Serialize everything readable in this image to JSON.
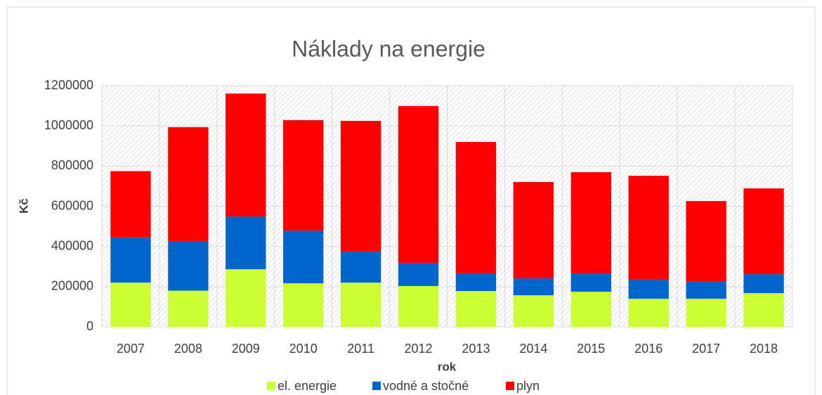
{
  "chart_data": {
    "type": "stacked_bar",
    "title": "Náklady na energie",
    "x_label": "rok",
    "y_label": "Kč",
    "categories": [
      "2007",
      "2008",
      "2009",
      "2010",
      "2011",
      "2012",
      "2013",
      "2014",
      "2015",
      "2016",
      "2017",
      "2018"
    ],
    "series": [
      {
        "name": "el. energie",
        "color": "#ccff33",
        "values": [
          220000,
          180000,
          287000,
          217000,
          220000,
          203000,
          178000,
          157000,
          175000,
          140000,
          140000,
          168000
        ]
      },
      {
        "name": "vodné a stočné",
        "color": "#0066cc",
        "values": [
          225000,
          247000,
          262000,
          262000,
          154000,
          115000,
          88000,
          84000,
          91000,
          94000,
          87000,
          94000
        ]
      },
      {
        "name": "plyn",
        "color": "#ff0000",
        "values": [
          330000,
          567000,
          612000,
          550000,
          651000,
          781000,
          654000,
          480000,
          504000,
          518000,
          399000,
          427000
        ]
      }
    ],
    "ylim": [
      0,
      1200000
    ],
    "yticks": [
      0,
      200000,
      400000,
      600000,
      800000,
      1000000,
      1200000
    ],
    "grid": true,
    "legend": "bottom"
  }
}
